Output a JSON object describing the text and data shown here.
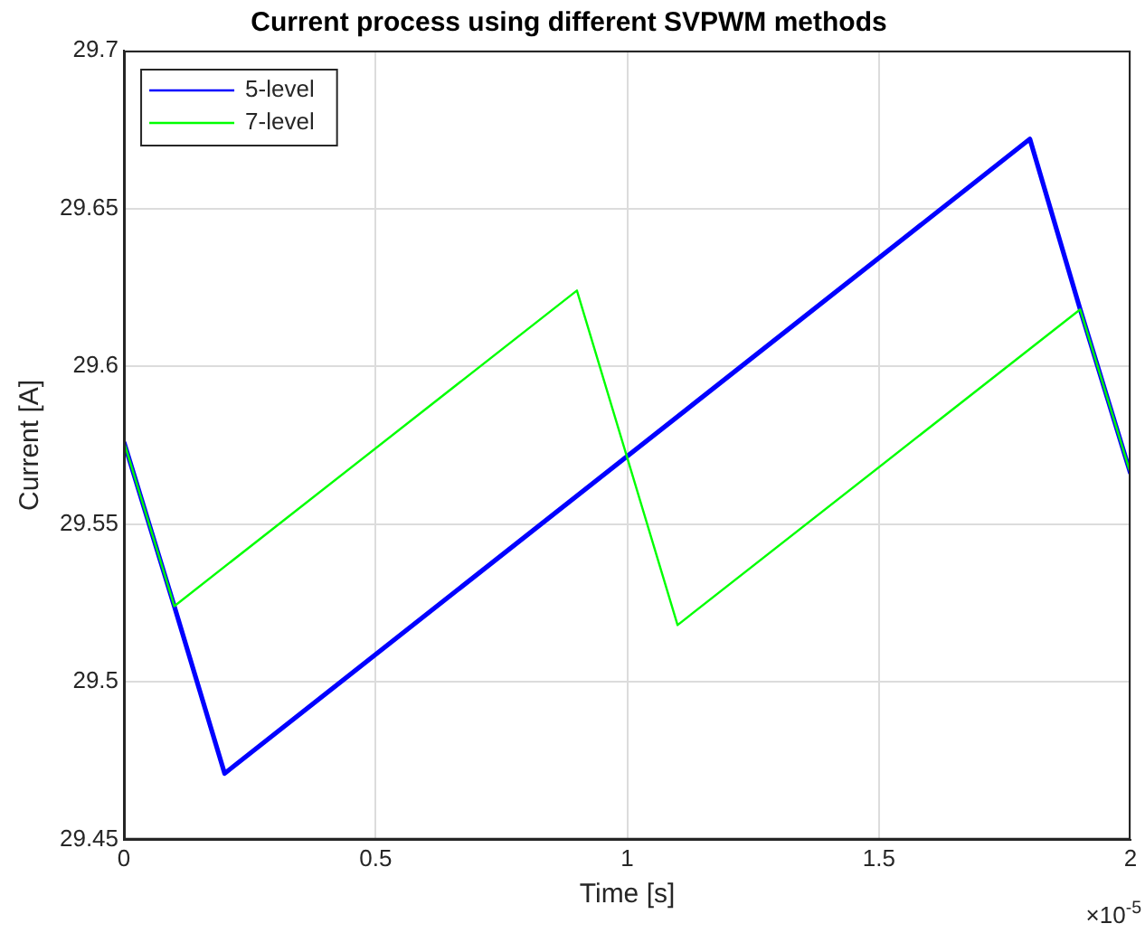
{
  "chart_data": {
    "type": "line",
    "title": "Current process using different SVPWM methods",
    "xlabel": "Time [s]",
    "ylabel": "Current [A]",
    "annotations": [
      "×10$^{-5}$"
    ],
    "series": [
      {
        "name": "5-level",
        "color": "#0000ff",
        "x": [
          0,
          0.1,
          0.2,
          1.8,
          1.9,
          2
        ],
        "values": [
          29.576,
          29.524,
          29.471,
          29.672,
          29.618,
          29.566
        ]
      },
      {
        "name": "7-level",
        "color": "#00ff00",
        "x": [
          0,
          0.1,
          0.9,
          1.1,
          1.9,
          2
        ],
        "values": [
          29.576,
          29.524,
          29.624,
          29.518,
          29.618,
          29.566
        ]
      }
    ],
    "xlim": [
      0,
      2
    ],
    "xticks": [
      0,
      0.5,
      1,
      1.5,
      2
    ],
    "ylim": [
      29.45,
      29.7
    ],
    "yticks": [
      29.45,
      29.5,
      29.55,
      29.6,
      29.65,
      29.7
    ],
    "grid": true,
    "legend": "top left",
    "marker": "none",
    "line_style": "solid"
  }
}
